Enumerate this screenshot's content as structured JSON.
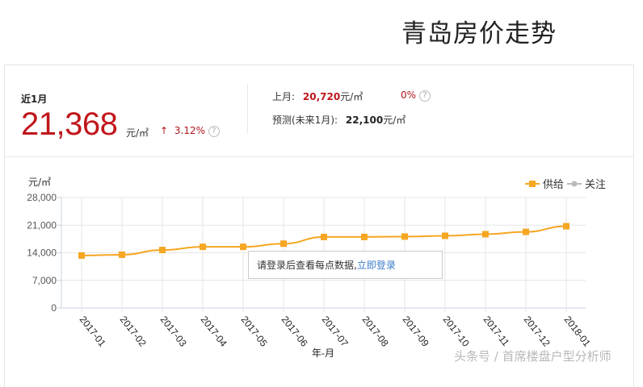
{
  "page": {
    "title": "青岛房价走势"
  },
  "summary": {
    "recent_label": "近1月",
    "price": "21,368",
    "unit": "元/㎡",
    "change_arrow": "↑",
    "change": "3.12%",
    "help_icon": "?",
    "last_month_label": "上月:",
    "last_month_value": "20,720",
    "last_month_unit": "元/㎡",
    "last_month_change": "0%",
    "forecast_label": "预测(未来1月):",
    "forecast_value": "22,100",
    "forecast_unit": "元/㎡"
  },
  "legend": {
    "items": [
      {
        "label": "供给",
        "color": "#f5a623"
      },
      {
        "label": "关注",
        "color": "#bbbbbb"
      }
    ]
  },
  "tooltip": {
    "text": "请登录后查看每点数据,",
    "link": "立即登录"
  },
  "watermark": "头条号 / 首席楼盘户型分析师",
  "chart_data": {
    "type": "line",
    "title": "青岛房价走势",
    "xlabel": "年-月",
    "ylabel": "元/㎡",
    "ylim": [
      0,
      28000
    ],
    "yticks": [
      "0",
      "7,000",
      "14,000",
      "21,000",
      "28,000"
    ],
    "grid": true,
    "legend_position": "top-right",
    "categories": [
      "2017-01",
      "2017-02",
      "2017-03",
      "2017-04",
      "2017-05",
      "2017-06",
      "2017-07",
      "2017-08",
      "2017-09",
      "2017-10",
      "2017-11",
      "2017-12",
      "2018-01"
    ],
    "series": [
      {
        "name": "供给",
        "color": "#f5a623",
        "values": [
          13300,
          13500,
          14700,
          15500,
          15500,
          16300,
          18000,
          18000,
          18100,
          18300,
          18700,
          19300,
          20720
        ]
      },
      {
        "name": "关注",
        "color": "#bbbbbb",
        "values": []
      }
    ]
  }
}
